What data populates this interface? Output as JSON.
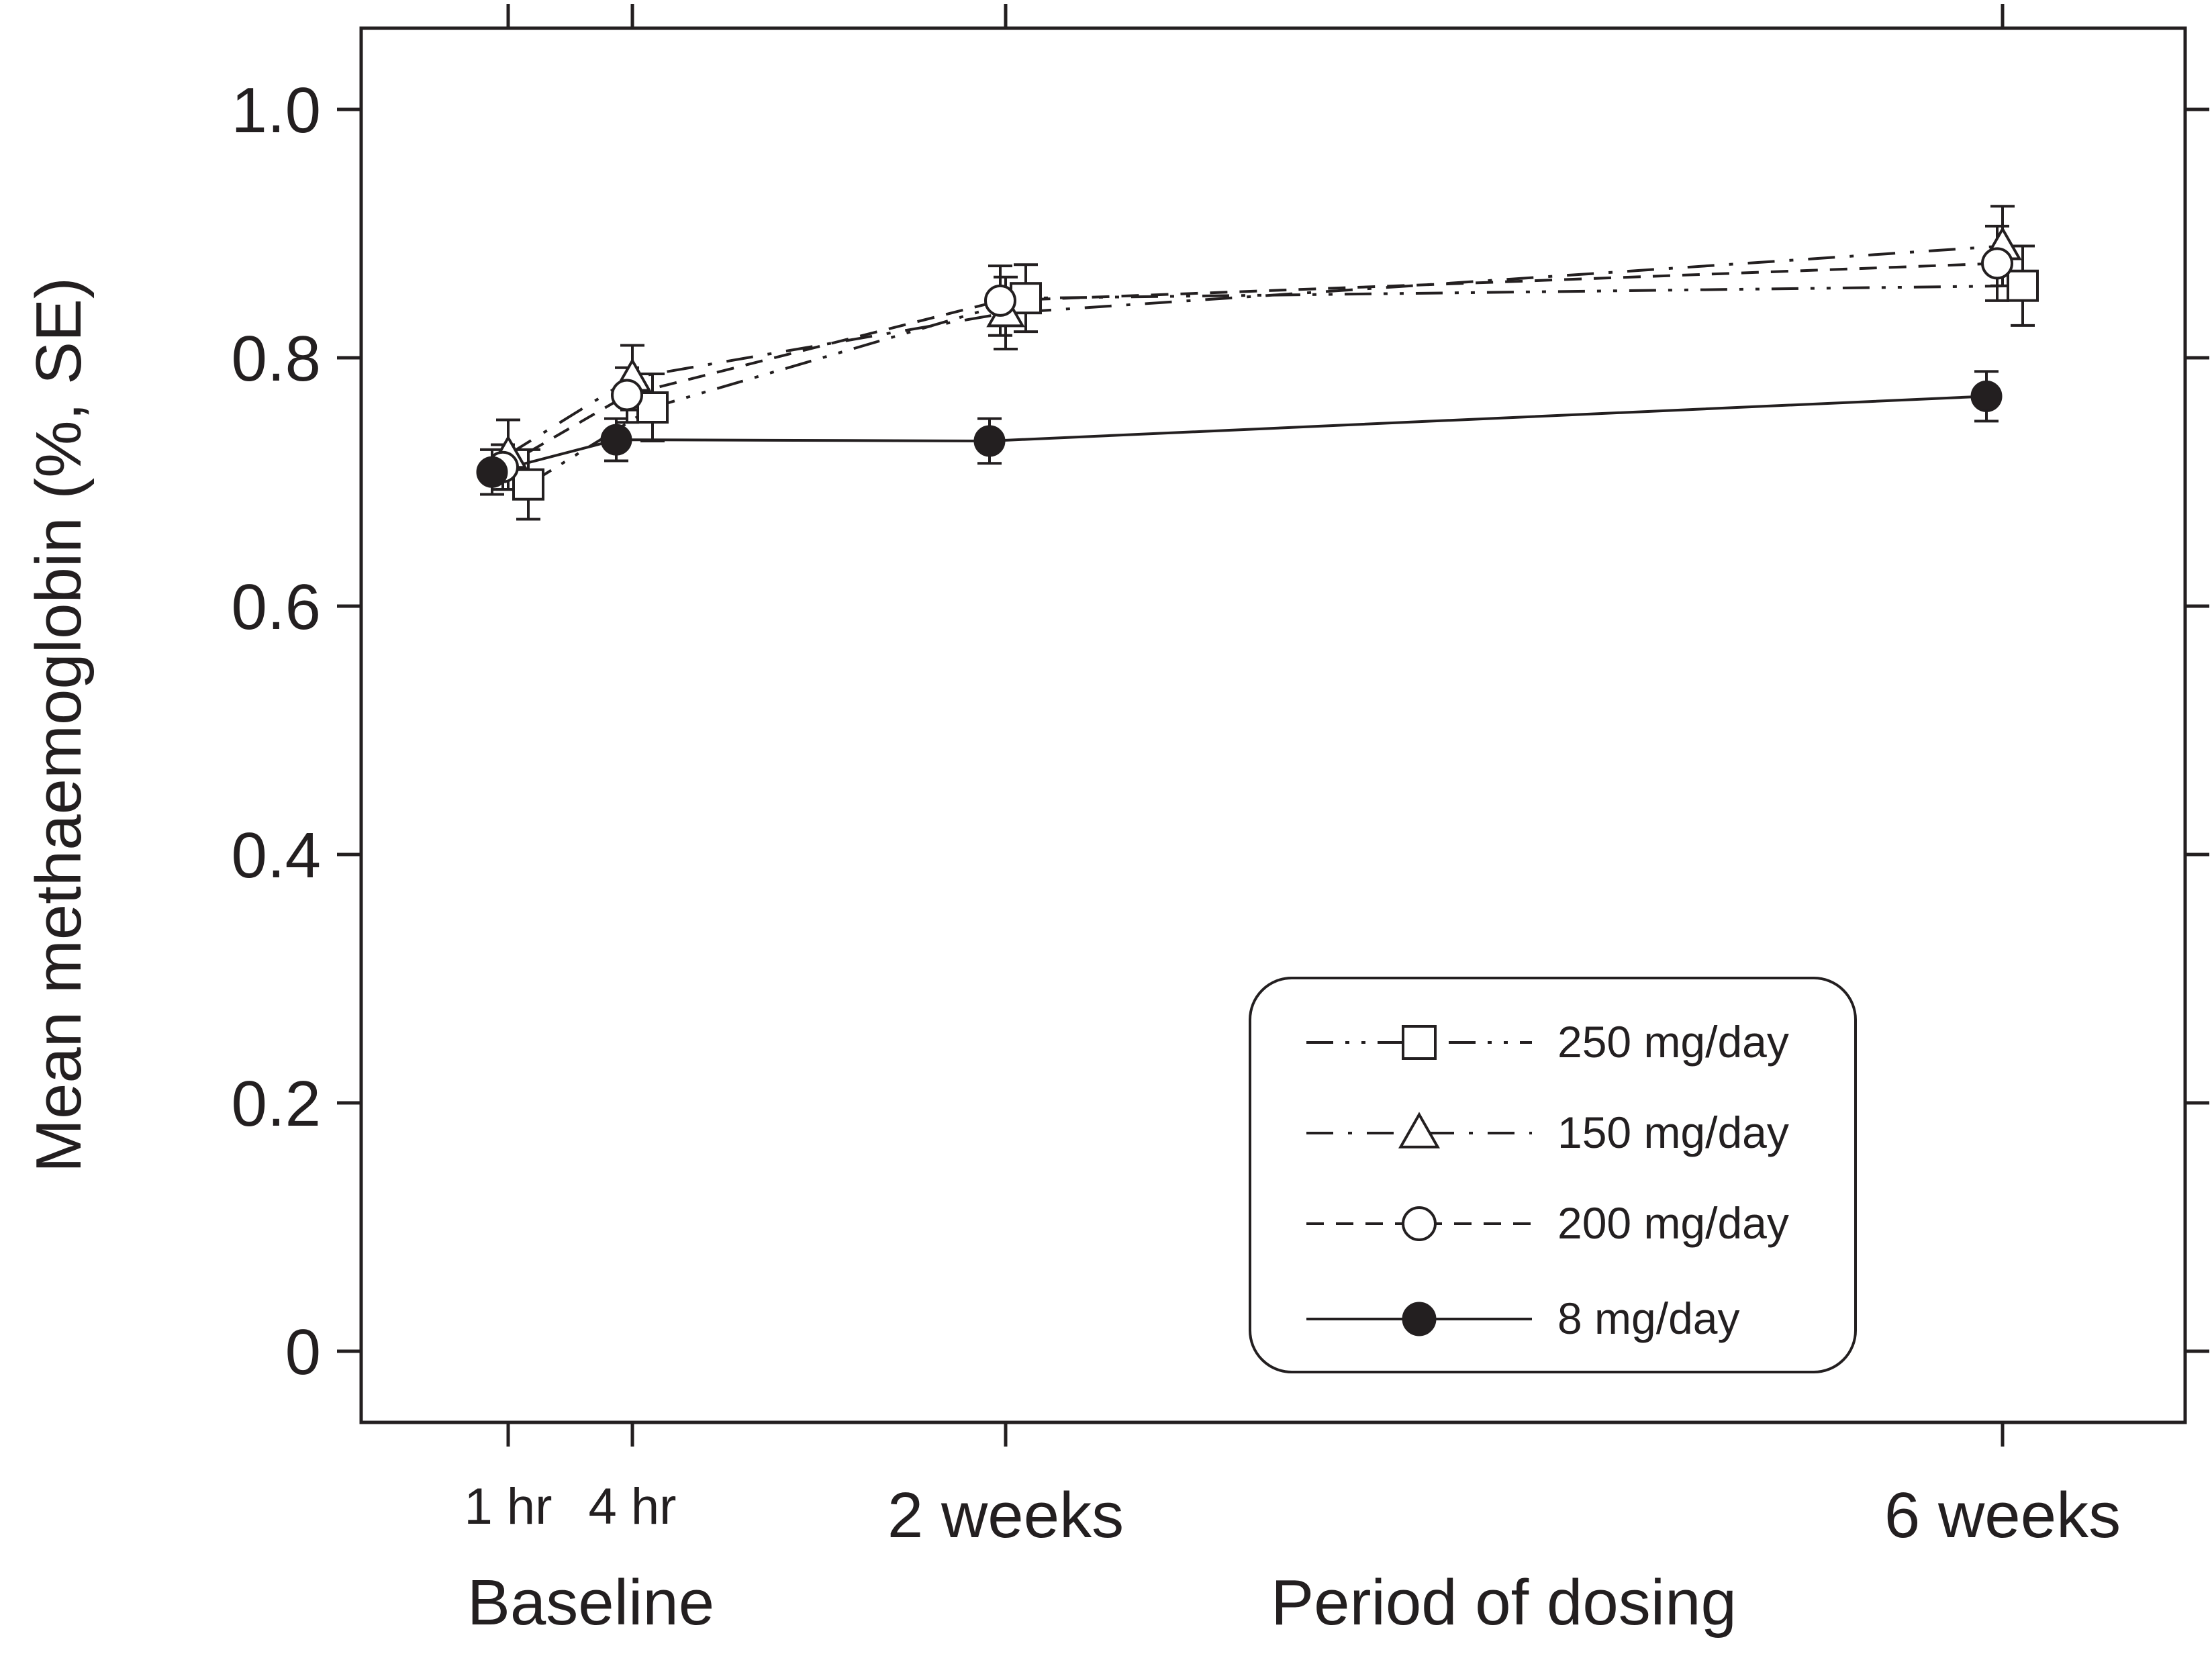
{
  "chart_data": {
    "type": "line",
    "title": "",
    "ylabel": "Mean methaemoglobin (%, SE)",
    "xlabel": "Period of dosing",
    "baseline_label": "Baseline",
    "ylim": [
      -0.06,
      1.06
    ],
    "yticks": [
      0,
      0.2,
      0.4,
      0.6,
      0.8,
      1.0
    ],
    "ytick_labels": [
      "0",
      "0.2",
      "0.4",
      "0.6",
      "0.8",
      "1.0"
    ],
    "x_positions": [
      {
        "key": "1hr",
        "label": "1 hr",
        "size": "small"
      },
      {
        "key": "4hr",
        "label": "4 hr",
        "size": "small"
      },
      {
        "key": "2wk",
        "label": "2 weeks",
        "size": "big"
      },
      {
        "key": "6wk",
        "label": "6 weeks",
        "size": "big"
      }
    ],
    "legend_position": "bottom-right",
    "series": [
      {
        "name": "250 mg/day",
        "marker": "square",
        "dash": "dash-dot-dot",
        "values": [
          0.698,
          0.76,
          0.848,
          0.858
        ],
        "se": [
          0.028,
          0.027,
          0.027,
          0.032
        ]
      },
      {
        "name": "150 mg/day",
        "marker": "triangle",
        "dash": "dash-dot",
        "values": [
          0.722,
          0.784,
          0.836,
          0.89
        ],
        "se": [
          0.028,
          0.026,
          0.029,
          0.032
        ]
      },
      {
        "name": "200 mg/day",
        "marker": "circle",
        "dash": "dashed",
        "values": [
          0.712,
          0.77,
          0.846,
          0.876
        ],
        "se": [
          0.018,
          0.022,
          0.028,
          0.03
        ]
      },
      {
        "name": "8 mg/day",
        "marker": "filled-circle",
        "dash": "solid",
        "values": [
          0.708,
          0.734,
          0.733,
          0.769
        ],
        "se": [
          0.018,
          0.017,
          0.018,
          0.02
        ]
      }
    ]
  }
}
